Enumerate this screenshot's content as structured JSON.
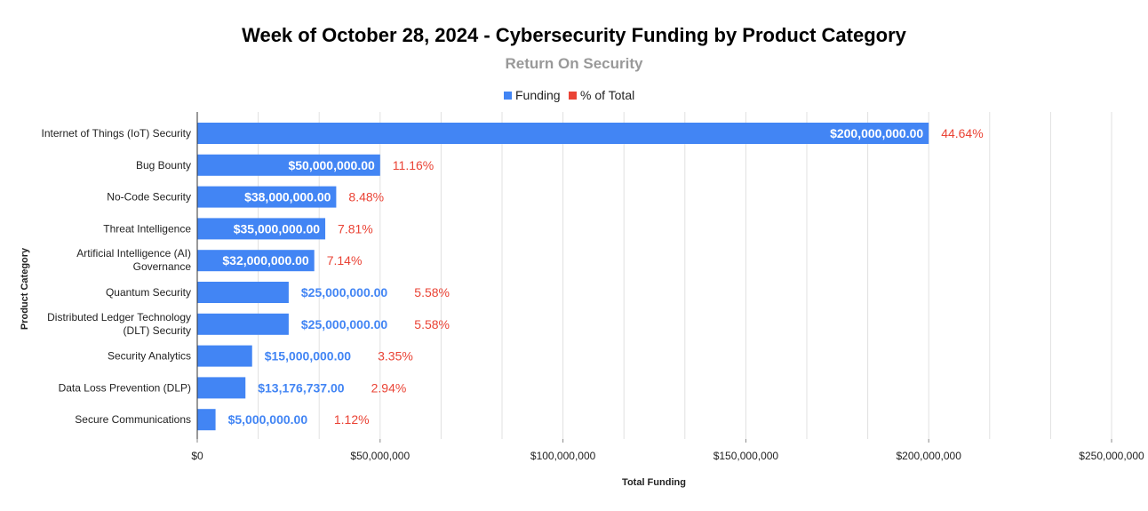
{
  "chart_data": {
    "type": "bar",
    "orientation": "horizontal",
    "title": "Week of October 28, 2024 - Cybersecurity Funding by Product Category",
    "subtitle": "Return On Security",
    "xlabel": "Total Funding",
    "ylabel": "Product Category",
    "xlim": [
      0,
      250000000
    ],
    "x_ticks": [
      {
        "value": 0,
        "label": "$0"
      },
      {
        "value": 50000000,
        "label": "$50,000,000"
      },
      {
        "value": 100000000,
        "label": "$100,000,000"
      },
      {
        "value": 150000000,
        "label": "$150,000,000"
      },
      {
        "value": 200000000,
        "label": "$200,000,000"
      },
      {
        "value": 250000000,
        "label": "$250,000,000"
      }
    ],
    "grid": true,
    "legend": {
      "position": "top-center",
      "entries": [
        {
          "name": "Funding",
          "color": "#4285f4"
        },
        {
          "name": "% of Total",
          "color": "#ea4335"
        }
      ]
    },
    "categories": [
      [
        "Internet of Things (IoT) Security"
      ],
      [
        "Bug Bounty"
      ],
      [
        "No-Code Security"
      ],
      [
        "Threat Intelligence"
      ],
      [
        "Artificial Intelligence (AI)",
        "Governance"
      ],
      [
        "Quantum Security"
      ],
      [
        "Distributed Ledger Technology",
        "(DLT) Security"
      ],
      [
        "Security Analytics"
      ],
      [
        "Data Loss Prevention (DLP)"
      ],
      [
        "Secure Communications"
      ]
    ],
    "series": [
      {
        "name": "Funding",
        "values": [
          200000000,
          50000000,
          38000000,
          35000000,
          32000000,
          25000000,
          25000000,
          15000000,
          13176737,
          5000000
        ],
        "labels": [
          "$200,000,000.00",
          "$50,000,000.00",
          "$38,000,000.00",
          "$35,000,000.00",
          "$32,000,000.00",
          "$25,000,000.00",
          "$25,000,000.00",
          "$15,000,000.00",
          "$13,176,737.00",
          "$5,000,000.00"
        ]
      },
      {
        "name": "% of Total",
        "values": [
          44.64,
          11.16,
          8.48,
          7.81,
          7.14,
          5.58,
          5.58,
          3.35,
          2.94,
          1.12
        ],
        "labels": [
          "44.64%",
          "11.16%",
          "8.48%",
          "7.81%",
          "7.14%",
          "5.58%",
          "5.58%",
          "3.35%",
          "2.94%",
          "1.12%"
        ]
      }
    ],
    "colors": {
      "bar": "#4285f4",
      "bar_label_inside": "#ffffff",
      "bar_label_outside": "#4285f4",
      "percent_label": "#ea4335",
      "title": "#000000",
      "subtitle": "#999999",
      "grid": "#e0e0e0",
      "axis": "#333333"
    }
  }
}
